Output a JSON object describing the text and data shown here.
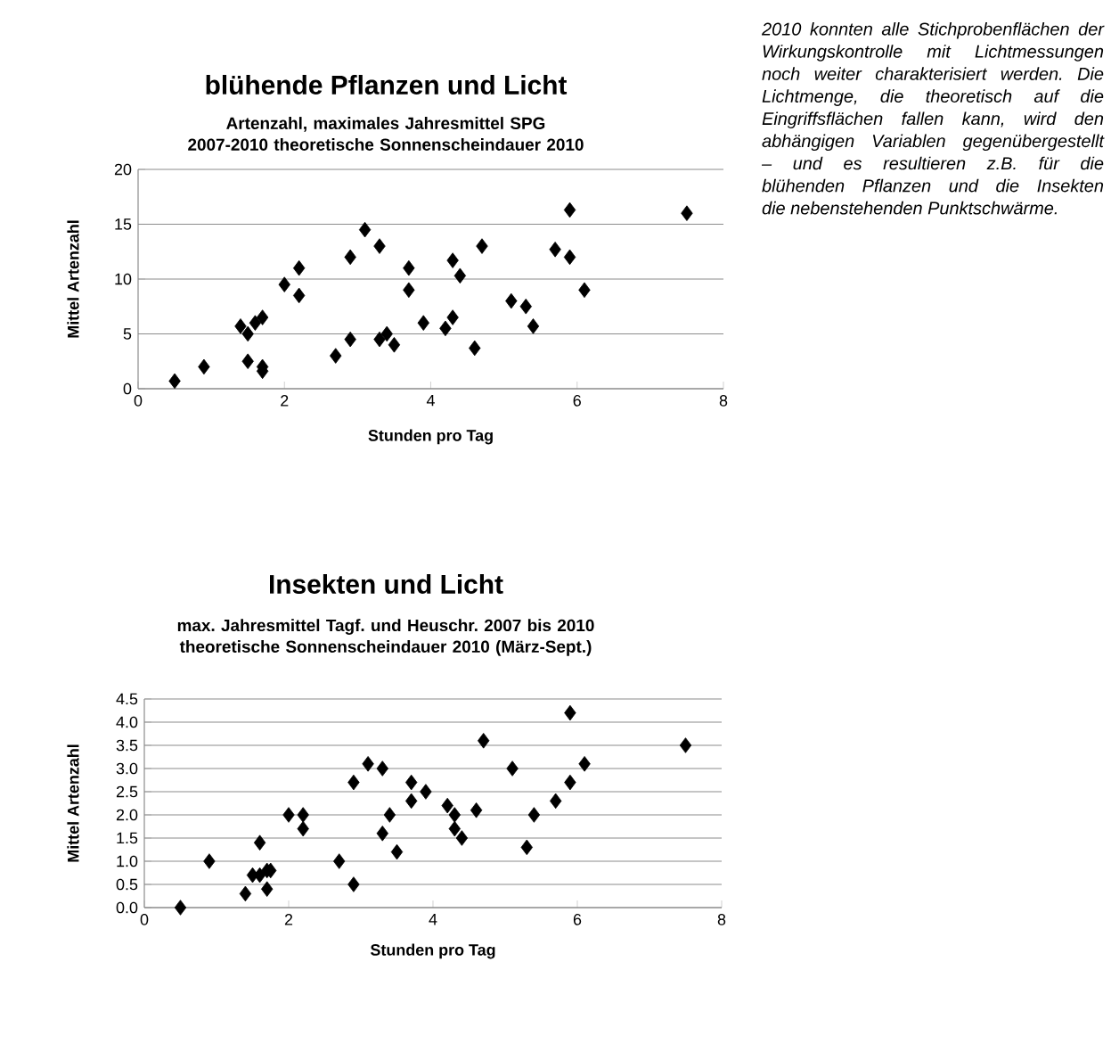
{
  "chart_data": [
    {
      "type": "scatter",
      "title": "blühende Pflanzen und Licht",
      "subtitle": "Artenzahl, maximales Jahresmittel SPG 2007-2010 theoretische Sonnenscheindauer 2010",
      "xlabel": "Stunden pro Tag",
      "ylabel": "Mittel Artenzahl",
      "xlim": [
        0,
        8
      ],
      "xticks": [
        0,
        2,
        4,
        6,
        8
      ],
      "ylim": [
        0,
        20
      ],
      "yticks": [
        0,
        5,
        10,
        15,
        20
      ],
      "grid": "y",
      "marker": "diamond",
      "series": [
        {
          "color": "#000000",
          "x": [
            0.5,
            0.9,
            1.4,
            1.5,
            1.5,
            1.6,
            1.7,
            1.7,
            1.7,
            2,
            2.2,
            2.2,
            2.7,
            2.9,
            2.9,
            3.1,
            3.3,
            3.3,
            3.4,
            3.5,
            3.7,
            3.7,
            3.9,
            4.2,
            4.3,
            4.3,
            4.4,
            4.6,
            4.7,
            5.1,
            5.3,
            5.4,
            5.7,
            5.9,
            5.9,
            6.1,
            7.5
          ],
          "values": [
            0.7,
            2,
            5.7,
            5,
            2.5,
            6,
            6.5,
            2,
            1.6,
            9.5,
            11,
            8.5,
            3,
            12,
            4.5,
            14.5,
            13,
            4.5,
            5,
            4,
            11,
            9,
            6,
            5.5,
            6.5,
            11.7,
            10.3,
            3.7,
            13,
            8,
            7.5,
            5.7,
            12.7,
            16.3,
            12,
            9,
            16
          ]
        }
      ]
    },
    {
      "type": "scatter",
      "title": "Insekten und Licht",
      "subtitle": "max. Jahresmittel Tagf. und Heuschr. 2007 bis 2010 theoretische Sonnenscheindauer 2010 (März-Sept.)",
      "xlabel": "Stunden pro Tag",
      "ylabel": "Mittel Artenzahl",
      "xlim": [
        0,
        8
      ],
      "xticks": [
        0,
        2,
        4,
        6,
        8
      ],
      "ylim": [
        0,
        4.5
      ],
      "yticks": [
        {
          "value": 0,
          "label": "0.0"
        },
        {
          "value": 0.5,
          "label": "0.5"
        },
        {
          "value": 1,
          "label": "1.0"
        },
        {
          "value": 1.5,
          "label": "1.5"
        },
        {
          "value": 2,
          "label": "2.0"
        },
        {
          "value": 2.5,
          "label": "2.5"
        },
        {
          "value": 3,
          "label": "3.0"
        },
        {
          "value": 3.5,
          "label": "3.5"
        },
        {
          "value": 4,
          "label": "4.0"
        },
        {
          "value": 4.5,
          "label": "4.5"
        }
      ],
      "grid": "y",
      "marker": "diamond",
      "series": [
        {
          "color": "#000000",
          "x": [
            0.5,
            0.9,
            1.4,
            1.5,
            1.6,
            1.6,
            1.7,
            1.7,
            1.75,
            2,
            2.2,
            2.2,
            2.7,
            2.9,
            2.9,
            3.1,
            3.3,
            3.3,
            3.4,
            3.5,
            3.7,
            3.7,
            3.9,
            4.2,
            4.3,
            4.3,
            4.4,
            4.6,
            4.7,
            5.1,
            5.3,
            5.4,
            5.7,
            5.9,
            5.9,
            6.1,
            7.5
          ],
          "values": [
            0,
            1,
            0.3,
            0.7,
            0.7,
            1.4,
            0.8,
            0.4,
            0.8,
            2,
            2,
            1.7,
            1,
            2.7,
            0.5,
            3.1,
            3,
            1.6,
            2,
            1.2,
            2.7,
            2.3,
            2.5,
            2.2,
            2,
            1.7,
            1.5,
            2.1,
            3.6,
            3,
            1.3,
            2,
            2.3,
            4.2,
            2.7,
            3.1,
            3.5
          ]
        }
      ]
    },
    {
      "type": "other",
      "annotations": [
        "2010 konnten alle Stichprobenflächen der Wirkungskontrolle mit Lichtmessungen noch weiter charakterisiert werden. Die Lichtmenge, die theoretisch auf die Eingriffsflächen fallen kann, wird den abhängigen Variablen gegenübergestellt – und es resultieren z.B. für die blühenden Pflanzen und die Insekten die nebenstehenden Punktschwärme."
      ]
    }
  ]
}
